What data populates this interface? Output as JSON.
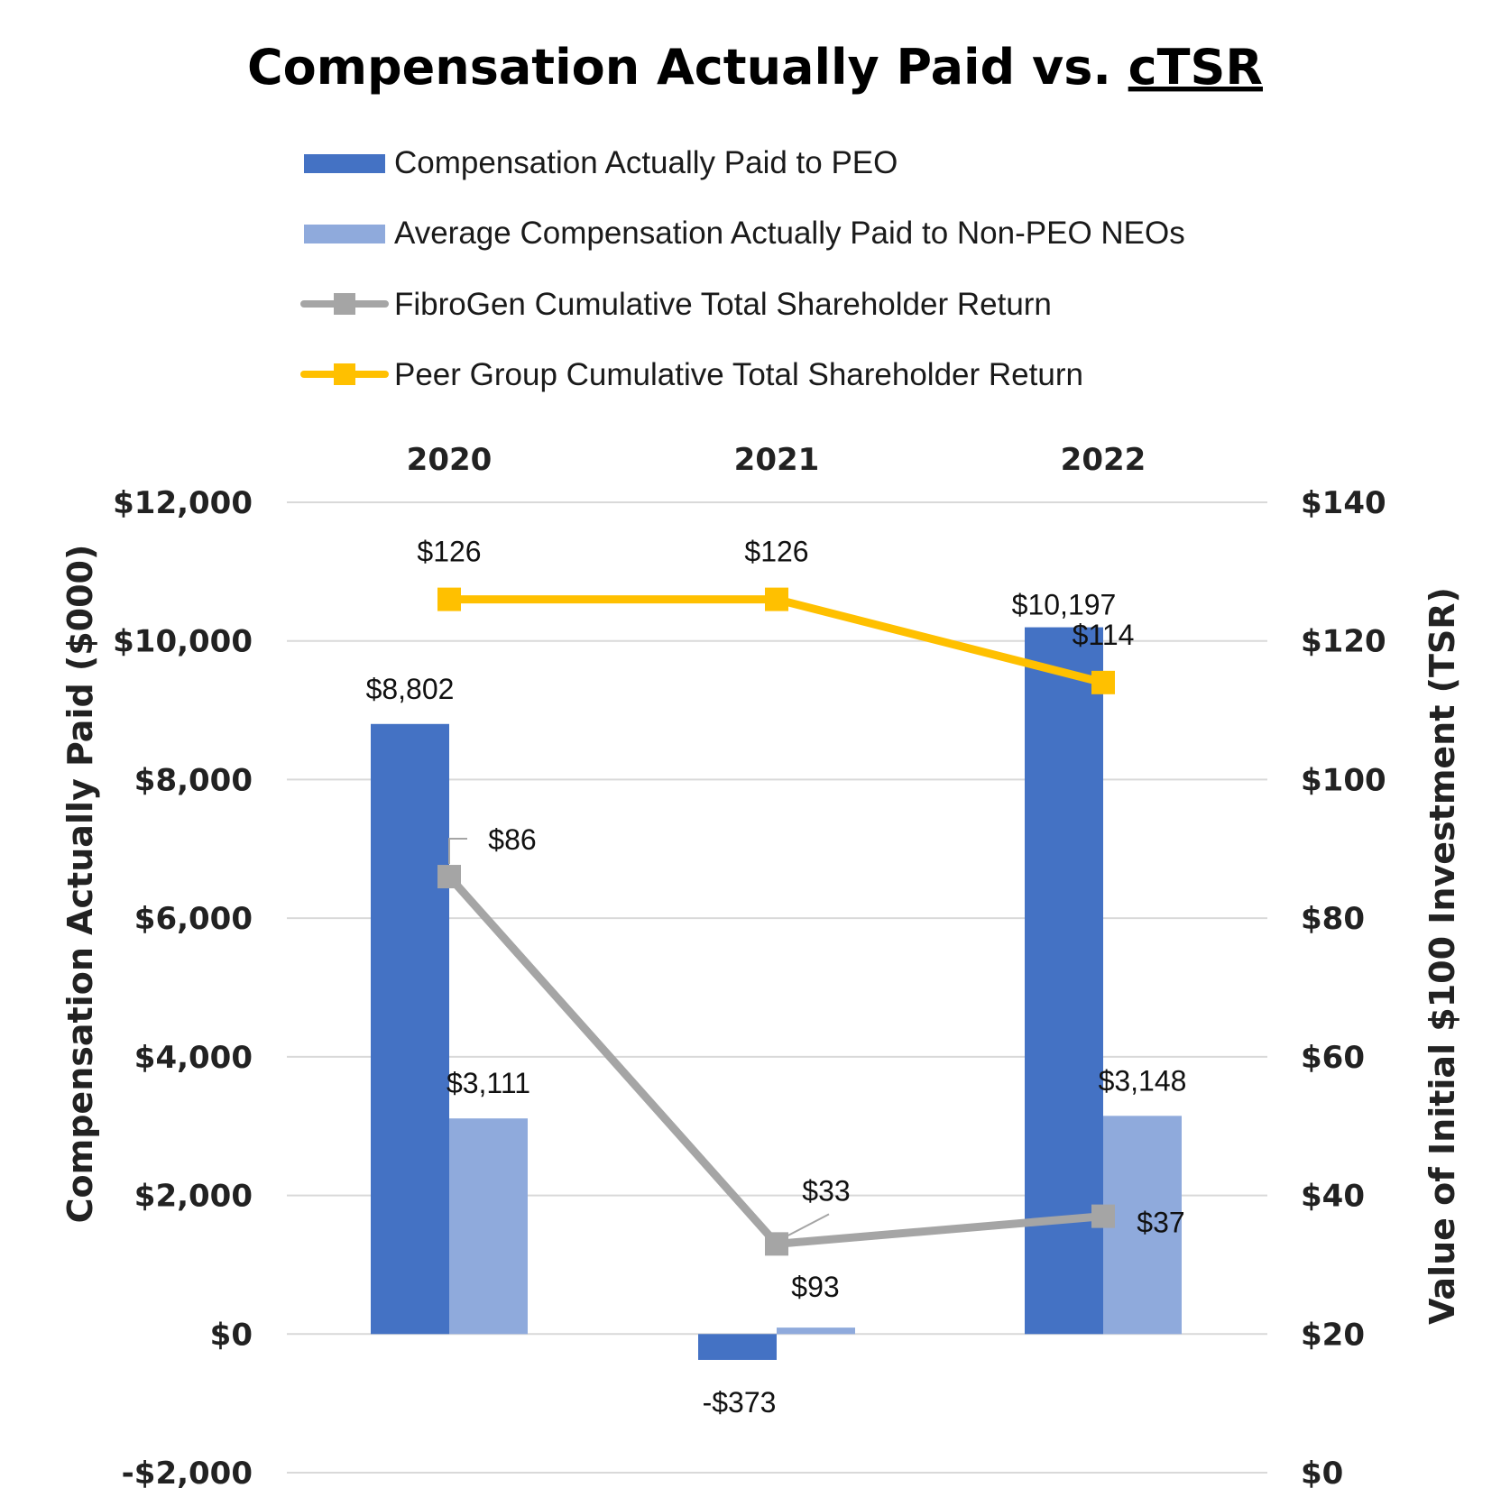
{
  "chart_data": {
    "type": "bar",
    "title_main": "Compensation Actually Paid vs. ",
    "title_underlined": "cTSR",
    "categories": [
      "2020",
      "2021",
      "2022"
    ],
    "series": [
      {
        "name": "Compensation Actually Paid to PEO",
        "kind": "bar",
        "axis": "left",
        "color": "#4472C4",
        "values": [
          8802,
          -373,
          10197
        ],
        "labels": [
          "$8,802",
          "-$373",
          "$10,197"
        ]
      },
      {
        "name": "Average Compensation Actually Paid to Non-PEO NEOs",
        "kind": "bar",
        "axis": "left",
        "color": "#8FAADC",
        "values": [
          3111,
          93,
          3148
        ],
        "labels": [
          "$3,111",
          "$93",
          "$3,148"
        ]
      },
      {
        "name": "FibroGen Cumulative Total Shareholder Return",
        "kind": "line",
        "axis": "right",
        "color": "#A5A5A5",
        "values": [
          86,
          33,
          37
        ],
        "labels": [
          "$86",
          "$33",
          "$37"
        ]
      },
      {
        "name": "Peer Group Cumulative Total Shareholder Return",
        "kind": "line",
        "axis": "right",
        "color": "#FFC000",
        "values": [
          126,
          126,
          114
        ],
        "labels": [
          "$126",
          "$126",
          "$114"
        ]
      }
    ],
    "ylabel": "Compensation Actually Paid ($000)",
    "y2label": "Value of Initial $100 Investment (TSR)",
    "ylim": [
      -2000,
      12000
    ],
    "y2lim": [
      0,
      140
    ],
    "yticks": [
      -2000,
      0,
      2000,
      4000,
      6000,
      8000,
      10000,
      12000
    ],
    "ytick_labels": [
      "-$2,000",
      "$0",
      "$2,000",
      "$4,000",
      "$6,000",
      "$8,000",
      "$10,000",
      "$12,000"
    ],
    "y2ticks": [
      0,
      20,
      40,
      60,
      80,
      100,
      120,
      140
    ],
    "y2tick_labels": [
      "$0",
      "$20",
      "$40",
      "$60",
      "$80",
      "$100",
      "$120",
      "$140"
    ],
    "grid": true,
    "legend_position": "top"
  }
}
